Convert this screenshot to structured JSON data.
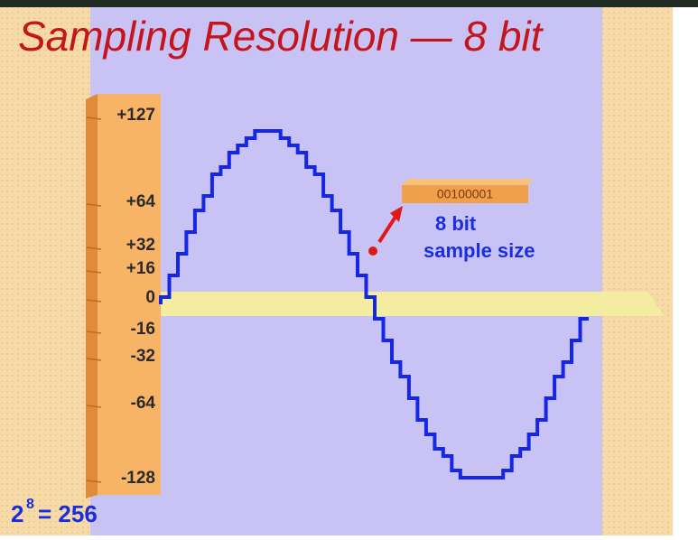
{
  "header": {
    "title": "Sampling Resolution — 8 bit"
  },
  "scale": {
    "labels": [
      "+127",
      "+64",
      "+32",
      "+16",
      "0",
      "-16",
      "-32",
      "-64",
      "-128"
    ]
  },
  "sample": {
    "bits": "00100001",
    "line1": "8 bit",
    "line2": "sample size"
  },
  "formula": {
    "base": "2",
    "exponent": "8",
    "result": "= 256"
  }
}
